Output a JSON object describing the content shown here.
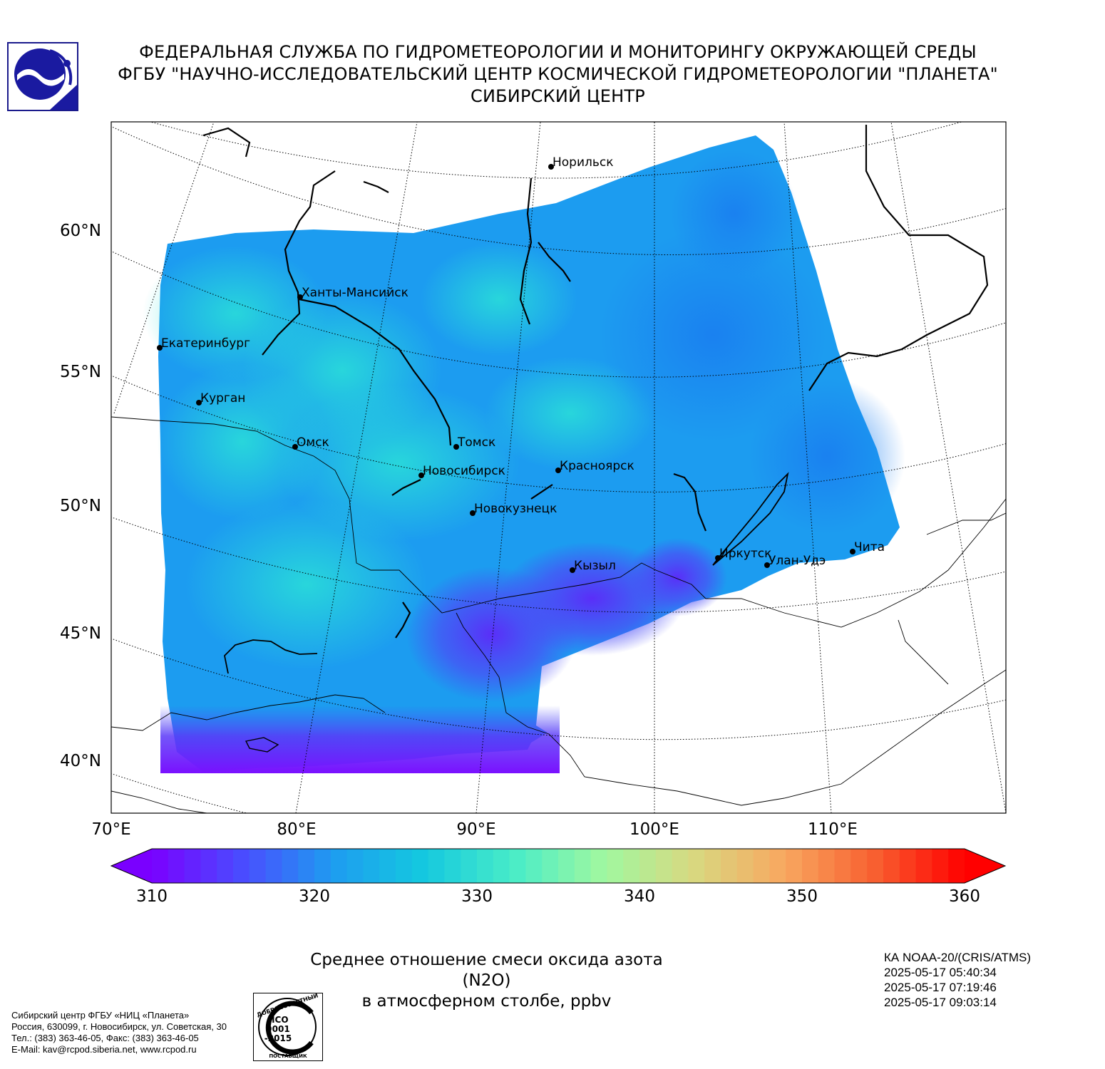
{
  "header": {
    "line1": "ФЕДЕРАЛЬНАЯ СЛУЖБА ПО ГИДРОМЕТЕОРОЛОГИИ И МОНИТОРИНГУ ОКРУЖАЮЩЕЙ СРЕДЫ",
    "line2": "ФГБУ \"НАУЧНО-ИССЛЕДОВАТЕЛЬСКИЙ ЦЕНТР КОСМИЧЕСКОЙ ГИДРОМЕТЕОРОЛОГИИ \"ПЛАНЕТА\"",
    "line3": "СИБИРСКИЙ ЦЕНТР"
  },
  "map": {
    "lat_labels": [
      "60°N",
      "55°N",
      "50°N",
      "45°N",
      "40°N"
    ],
    "lon_labels": [
      "70°E",
      "80°E",
      "90°E",
      "100°E",
      "110°E"
    ],
    "cities": [
      {
        "name": "Норильск"
      },
      {
        "name": "Ханты-Мансийск"
      },
      {
        "name": "Екатеринбург"
      },
      {
        "name": "Курган"
      },
      {
        "name": "Омск"
      },
      {
        "name": "Томск"
      },
      {
        "name": "Новосибирск"
      },
      {
        "name": "Красноярск"
      },
      {
        "name": "Новокузнецк"
      },
      {
        "name": "Кызыл"
      },
      {
        "name": "Иркутск"
      },
      {
        "name": "Улан-Удэ"
      },
      {
        "name": "Чита"
      }
    ]
  },
  "colorbar": {
    "ticks": [
      "310",
      "320",
      "330",
      "340",
      "350",
      "360"
    ],
    "min": 310,
    "max": 360,
    "colors": [
      "#7a00ff",
      "#4a4cff",
      "#1e9cf0",
      "#14c8e0",
      "#48ecc8",
      "#a0f8a0",
      "#d8d880",
      "#f8a860",
      "#f86030",
      "#ff0000"
    ]
  },
  "title": {
    "line1": "Среднее отношение смеси оксида азота (N2O)",
    "line2": "в атмосферном столбе, ppbv"
  },
  "satellite": {
    "name": "КА NOAA-20/(CRIS/ATMS)",
    "times": [
      "2025-05-17 05:40:34",
      "2025-05-17 07:19:46",
      "2025-05-17 09:03:14"
    ]
  },
  "footer": {
    "line1": "Сибирский центр ФГБУ «НИЦ «Планета»",
    "line2": "Россия, 630099, г. Новосибирск, ул. Советская, 30",
    "line3": "Тел.: (383) 363-46-05, Факс: (383) 363-46-05",
    "line4": "E-Mail: kav@rcpod.siberia.net, www.rcpod.ru"
  },
  "iso_badge": {
    "top": "ДОБРОСОВЕСТНЫЙ",
    "code1": "ИСО",
    "code2": "9001",
    "code3": "-2015",
    "bottom": "ПОСТАВЩИК"
  }
}
